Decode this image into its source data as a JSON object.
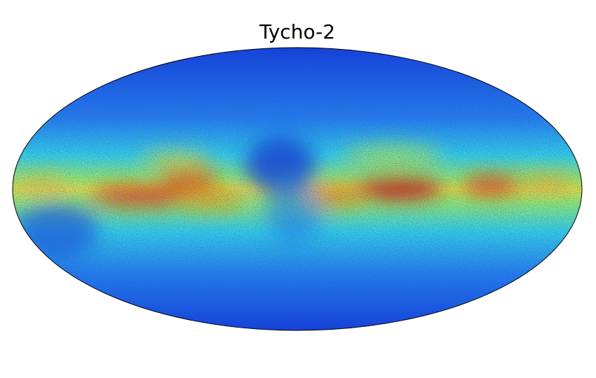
{
  "title": "Tycho-2"
}
